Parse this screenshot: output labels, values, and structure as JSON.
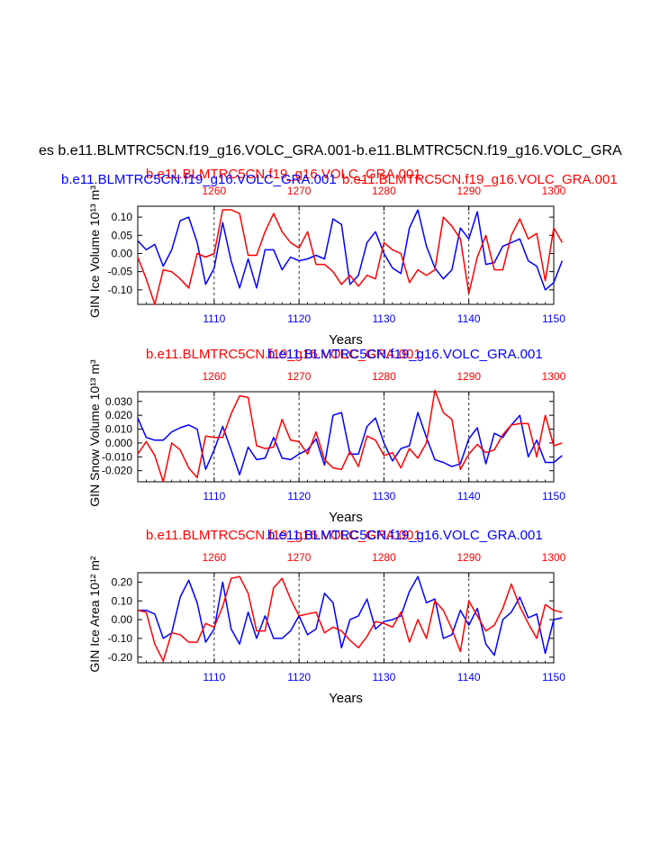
{
  "page_title": "es b.e11.BLMTRC5CN.f19_g16.VOLC_GRA.001-b.e11.BLMTRC5CN.f19_g16.VOLC_GRA",
  "colors": {
    "series_blue": "#0000ff",
    "series_red": "#ff0000",
    "axis": "#000000"
  },
  "chart_data": [
    {
      "type": "line",
      "title_red": "b.e11.BLMTRC5CN.f19_g16.VOLC_GRA.001",
      "title_blue": "b.e11.BLMTRC5CN.f19_g16.VOLC_GRA.001",
      "title_red_long": "b.e11.BLMTRC5CN.f19_g16.VOLC_GRA.001",
      "ylabel": "GIN Ice Volume 10¹³ m³",
      "xlabel": "Years",
      "ylim": [
        -0.14,
        0.13
      ],
      "yticks": [
        0.1,
        0.05,
        0.0,
        -0.05,
        -0.1
      ],
      "ytick_labels": [
        "0.10",
        "0.05",
        "0.00",
        "-0.05",
        "-0.10"
      ],
      "bottom_axis": {
        "range": [
          1101,
          1150
        ],
        "ticks": [
          1110,
          1120,
          1130,
          1140,
          1150
        ],
        "labels": [
          "1110",
          "1120",
          "1130",
          "1140",
          "1150"
        ],
        "color": "#0000ff"
      },
      "top_axis": {
        "range": [
          1251,
          1300
        ],
        "ticks": [
          1260,
          1270,
          1280,
          1290,
          1300
        ],
        "labels": [
          "1260",
          "1270",
          "1280",
          "1290",
          "1300"
        ],
        "color": "#ff0000"
      },
      "series": [
        {
          "name": "b.e11.BLMTRC5CN.f19_g16.VOLC_GRA.001",
          "color": "#0000ff",
          "values": [
            0.035,
            0.01,
            0.025,
            -0.035,
            0.01,
            0.09,
            0.1,
            0.03,
            -0.085,
            -0.04,
            0.085,
            -0.02,
            -0.095,
            -0.015,
            -0.095,
            0.01,
            0.01,
            -0.045,
            -0.01,
            -0.02,
            -0.015,
            -0.005,
            -0.015,
            0.095,
            0.08,
            -0.085,
            -0.06,
            0.03,
            0.06,
            0.0,
            -0.04,
            -0.055,
            0.07,
            0.12,
            0.02,
            -0.04,
            -0.07,
            -0.045,
            0.07,
            0.04,
            0.115,
            -0.03,
            -0.025,
            0.02,
            0.03,
            0.04,
            -0.02,
            -0.035,
            -0.1,
            -0.08,
            -0.02
          ]
        },
        {
          "name": "b.e11.BLMTRC5CN.f19_g16.VOLC_GRA.001",
          "color": "#ff0000",
          "values": [
            -0.01,
            -0.07,
            -0.14,
            -0.045,
            -0.05,
            -0.07,
            -0.095,
            0.0,
            -0.01,
            0.0,
            0.12,
            0.12,
            0.11,
            -0.005,
            -0.005,
            0.06,
            0.11,
            0.06,
            0.03,
            0.015,
            0.06,
            -0.03,
            -0.03,
            -0.05,
            -0.085,
            -0.06,
            -0.09,
            -0.06,
            -0.07,
            0.03,
            0.01,
            0.0,
            -0.08,
            -0.045,
            -0.06,
            -0.045,
            0.1,
            0.075,
            0.04,
            -0.11,
            -0.01,
            0.05,
            -0.045,
            -0.045,
            0.05,
            0.095,
            0.04,
            0.055,
            -0.075,
            0.07,
            0.03
          ]
        }
      ]
    },
    {
      "type": "line",
      "title_red": "b.e11.BLMTRC5CN.f19_g16.VOLC_GRA.001",
      "title_blue": "b.e11.BLMTRC5CN.f19_g16.VOLC_GRA.001",
      "title_red_long": "",
      "ylabel": "GIN Snow Volume 10¹³ m³",
      "xlabel": "Years",
      "ylim": [
        -0.028,
        0.037
      ],
      "yticks": [
        0.03,
        0.02,
        0.01,
        0.0,
        -0.01,
        -0.02
      ],
      "ytick_labels": [
        "0.030",
        "0.020",
        "0.010",
        "0.000",
        "-0.010",
        "-0.020"
      ],
      "bottom_axis": {
        "range": [
          1101,
          1150
        ],
        "ticks": [
          1110,
          1120,
          1130,
          1140,
          1150
        ],
        "labels": [
          "1110",
          "1120",
          "1130",
          "1140",
          "1150"
        ],
        "color": "#0000ff"
      },
      "top_axis": {
        "range": [
          1251,
          1300
        ],
        "ticks": [
          1260,
          1270,
          1280,
          1290,
          1300
        ],
        "labels": [
          "1260",
          "1270",
          "1280",
          "1290",
          "1300"
        ],
        "color": "#ff0000"
      },
      "series": [
        {
          "name": "b.e11.BLMTRC5CN.f19_g16.VOLC_GRA.001",
          "color": "#0000ff",
          "values": [
            0.018,
            0.004,
            0.002,
            0.002,
            0.008,
            0.011,
            0.013,
            0.01,
            -0.019,
            -0.005,
            0.012,
            -0.005,
            -0.023,
            -0.003,
            -0.012,
            -0.011,
            0.004,
            -0.011,
            -0.012,
            -0.008,
            -0.005,
            0.003,
            -0.016,
            0.02,
            0.022,
            -0.008,
            -0.008,
            0.012,
            0.018,
            0.0,
            -0.013,
            -0.004,
            -0.002,
            0.022,
            0.004,
            -0.012,
            -0.014,
            -0.017,
            -0.015,
            0.003,
            0.011,
            -0.015,
            0.007,
            0.004,
            0.013,
            0.02,
            -0.01,
            0.002,
            -0.014,
            -0.014,
            -0.009
          ]
        },
        {
          "name": "b.e11.BLMTRC5CN.f19_g16.VOLC_GRA.001",
          "color": "#ff0000",
          "values": [
            -0.008,
            0.001,
            -0.009,
            -0.028,
            0.0,
            -0.005,
            -0.018,
            -0.025,
            0.005,
            0.004,
            0.004,
            0.021,
            0.034,
            0.033,
            -0.002,
            -0.004,
            -0.003,
            0.017,
            0.002,
            0.001,
            -0.008,
            0.008,
            -0.012,
            -0.018,
            -0.019,
            -0.006,
            -0.017,
            0.005,
            0.002,
            -0.009,
            -0.007,
            -0.018,
            -0.004,
            -0.011,
            0.0,
            0.038,
            0.022,
            0.017,
            -0.019,
            -0.008,
            -0.001,
            -0.007,
            -0.005,
            0.006,
            0.013,
            0.014,
            0.014,
            -0.01,
            0.02,
            -0.002,
            0.0
          ]
        }
      ]
    },
    {
      "type": "line",
      "title_red": "b.e11.BLMTRC5CN.f19_g16.VOLC_GRA.001",
      "title_blue": "b.e11.BLMTRC5CN.f19_g16.VOLC_GRA.001",
      "title_red_long": "",
      "ylabel": "GIN Ice Area 10¹² m²",
      "xlabel": "Years",
      "ylim": [
        -0.23,
        0.25
      ],
      "yticks": [
        0.2,
        0.1,
        0.0,
        -0.1,
        -0.2
      ],
      "ytick_labels": [
        "0.20",
        "0.10",
        "0.00",
        "-0.10",
        "-0.20"
      ],
      "bottom_axis": {
        "range": [
          1101,
          1150
        ],
        "ticks": [
          1110,
          1120,
          1130,
          1140,
          1150
        ],
        "labels": [
          "1110",
          "1120",
          "1130",
          "1140",
          "1150"
        ],
        "color": "#0000ff"
      },
      "top_axis": {
        "range": [
          1251,
          1300
        ],
        "ticks": [
          1260,
          1270,
          1280,
          1290,
          1300
        ],
        "labels": [
          "1260",
          "1270",
          "1280",
          "1290",
          "1300"
        ],
        "color": "#ff0000"
      },
      "series": [
        {
          "name": "b.e11.BLMTRC5CN.f19_g16.VOLC_GRA.001",
          "color": "#0000ff",
          "values": [
            0.05,
            0.05,
            0.03,
            -0.1,
            -0.07,
            0.12,
            0.21,
            0.09,
            -0.12,
            -0.05,
            0.2,
            -0.05,
            -0.13,
            0.04,
            -0.1,
            0.02,
            -0.1,
            -0.1,
            -0.06,
            0.02,
            -0.08,
            -0.05,
            0.14,
            0.09,
            -0.15,
            0.0,
            0.02,
            0.11,
            -0.05,
            -0.01,
            0.0,
            0.02,
            0.15,
            0.23,
            0.09,
            0.11,
            -0.1,
            -0.08,
            0.05,
            -0.03,
            0.06,
            -0.13,
            -0.19,
            0.0,
            0.04,
            0.12,
            0.01,
            0.03,
            -0.18,
            0.0,
            0.01
          ]
        },
        {
          "name": "b.e11.BLMTRC5CN.f19_g16.VOLC_GRA.001",
          "color": "#ff0000",
          "values": [
            0.05,
            0.04,
            -0.13,
            -0.22,
            -0.07,
            -0.08,
            -0.12,
            -0.12,
            -0.02,
            -0.04,
            0.07,
            0.22,
            0.23,
            0.14,
            -0.06,
            -0.06,
            0.17,
            0.22,
            0.11,
            0.02,
            0.03,
            0.04,
            -0.07,
            -0.04,
            -0.06,
            -0.11,
            -0.15,
            -0.09,
            -0.01,
            -0.02,
            -0.04,
            0.04,
            -0.12,
            0.0,
            -0.1,
            0.1,
            0.05,
            -0.05,
            -0.17,
            0.1,
            0.02,
            -0.06,
            -0.03,
            0.06,
            0.19,
            0.07,
            -0.02,
            -0.1,
            0.08,
            0.05,
            0.04
          ]
        }
      ]
    }
  ]
}
